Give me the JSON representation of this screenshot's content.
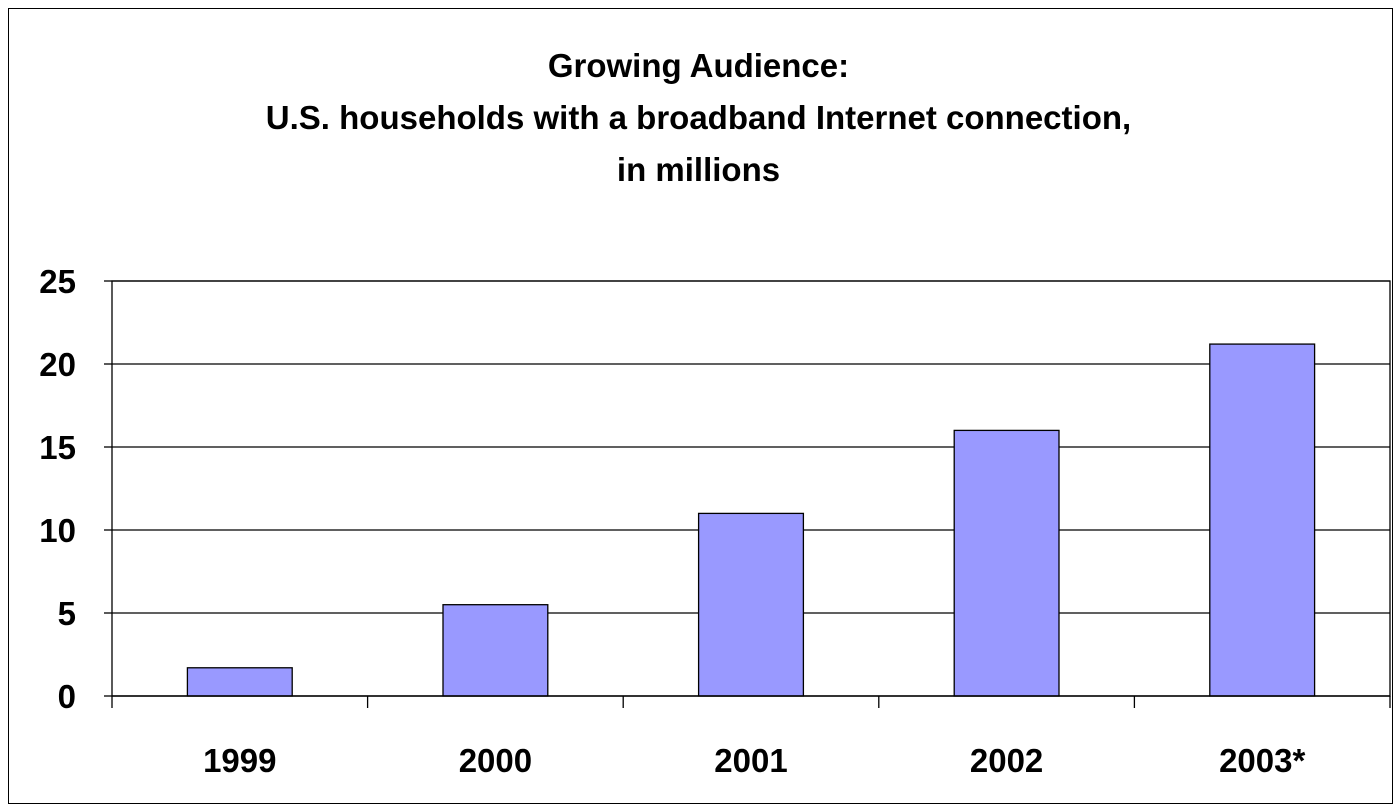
{
  "chart_data": {
    "type": "bar",
    "title": [
      "Growing Audience:",
      "U.S. households with a broadband Internet connection,",
      "in millions"
    ],
    "xlabel": "",
    "ylabel": "",
    "categories": [
      "1999",
      "2000",
      "2001",
      "2002",
      "2003*"
    ],
    "values": [
      1.7,
      5.5,
      11,
      16,
      21.2
    ],
    "ylim": [
      0,
      25
    ],
    "yticks": [
      0,
      5,
      10,
      15,
      20,
      25
    ],
    "grid": true,
    "legend": "none",
    "bar_color": "#9999FF",
    "bar_edge_color": "#000000"
  }
}
